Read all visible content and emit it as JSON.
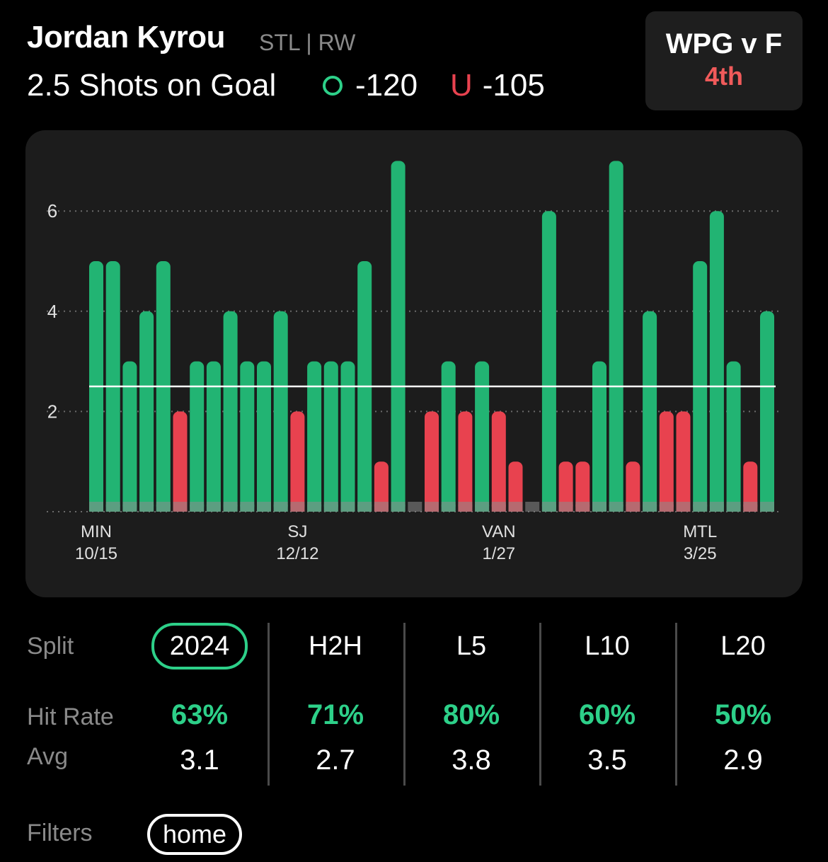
{
  "header": {
    "player_name": "Jordan Kyrou",
    "team_pos": "STL | RW",
    "prop_line": "2.5 Shots on Goal",
    "over_odds": "-120",
    "under_letter": "U",
    "under_odds": "-105"
  },
  "game": {
    "matchup": "WPG v F",
    "period": "4th"
  },
  "colors": {
    "over": "#2dd089",
    "bar_over": "#22b473",
    "bar_under": "#e8424f",
    "period": "#f05a5a"
  },
  "chart_data": {
    "type": "bar",
    "line": 2.5,
    "ylim": [
      0,
      7
    ],
    "yticks": [
      2,
      4,
      6
    ],
    "values": [
      5,
      5,
      3,
      4,
      5,
      2,
      3,
      3,
      4,
      3,
      3,
      4,
      2,
      3,
      3,
      3,
      5,
      1,
      7,
      0,
      2,
      3,
      2,
      3,
      2,
      1,
      0,
      6,
      1,
      1,
      3,
      7,
      1,
      4,
      2,
      2,
      5,
      6,
      3,
      1,
      4
    ],
    "x_labels": [
      {
        "index": 0,
        "team": "MIN",
        "date": "10/15"
      },
      {
        "index": 12,
        "team": "SJ",
        "date": "12/12"
      },
      {
        "index": 24,
        "team": "VAN",
        "date": "1/27"
      },
      {
        "index": 36,
        "team": "MTL",
        "date": "3/25"
      }
    ]
  },
  "splits": {
    "label_split": "Split",
    "label_hit": "Hit Rate",
    "label_avg": "Avg",
    "columns": [
      {
        "name": "2024",
        "hit": "63%",
        "avg": "3.1"
      },
      {
        "name": "H2H",
        "hit": "71%",
        "avg": "2.7"
      },
      {
        "name": "L5",
        "hit": "80%",
        "avg": "3.8"
      },
      {
        "name": "L10",
        "hit": "60%",
        "avg": "3.5"
      },
      {
        "name": "L20",
        "hit": "50%",
        "avg": "2.9"
      }
    ]
  },
  "filters": {
    "label": "Filters",
    "items": [
      "home"
    ]
  }
}
